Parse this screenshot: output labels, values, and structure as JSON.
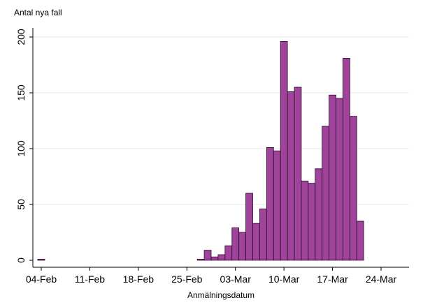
{
  "chart_data": {
    "type": "bar",
    "title": "",
    "xlabel": "Anmälningsdatum",
    "ylabel": "Antal nya fall",
    "ylim": [
      0,
      210
    ],
    "yticks": [
      0,
      50,
      100,
      150,
      200
    ],
    "xticks": [
      {
        "date": "2020-02-04",
        "label": "04-Feb"
      },
      {
        "date": "2020-02-11",
        "label": "11-Feb"
      },
      {
        "date": "2020-02-18",
        "label": "18-Feb"
      },
      {
        "date": "2020-02-25",
        "label": "25-Feb"
      },
      {
        "date": "2020-03-03",
        "label": "03-Mar"
      },
      {
        "date": "2020-03-10",
        "label": "10-Mar"
      },
      {
        "date": "2020-03-17",
        "label": "17-Mar"
      },
      {
        "date": "2020-03-24",
        "label": "24-Mar"
      }
    ],
    "xlim": [
      "2020-02-03",
      "2020-03-27"
    ],
    "grid": true,
    "bar_color": "#a0439a",
    "bar_edge_color": "#2a0a2a",
    "series": [
      {
        "x": [
          "2020-02-04",
          "2020-02-27",
          "2020-02-28",
          "2020-02-29",
          "2020-03-01",
          "2020-03-02",
          "2020-03-03",
          "2020-03-04",
          "2020-03-05",
          "2020-03-06",
          "2020-03-07",
          "2020-03-08",
          "2020-03-09",
          "2020-03-10",
          "2020-03-11",
          "2020-03-12",
          "2020-03-13",
          "2020-03-14",
          "2020-03-15",
          "2020-03-16",
          "2020-03-17",
          "2020-03-18",
          "2020-03-19",
          "2020-03-20",
          "2020-03-21",
          "2020-03-22"
        ],
        "values": [
          1,
          1,
          9,
          3,
          5,
          13,
          29,
          25,
          60,
          33,
          46,
          101,
          98,
          196,
          151,
          155,
          71,
          69,
          82,
          120,
          148,
          145,
          181,
          129,
          35,
          0
        ]
      }
    ]
  }
}
